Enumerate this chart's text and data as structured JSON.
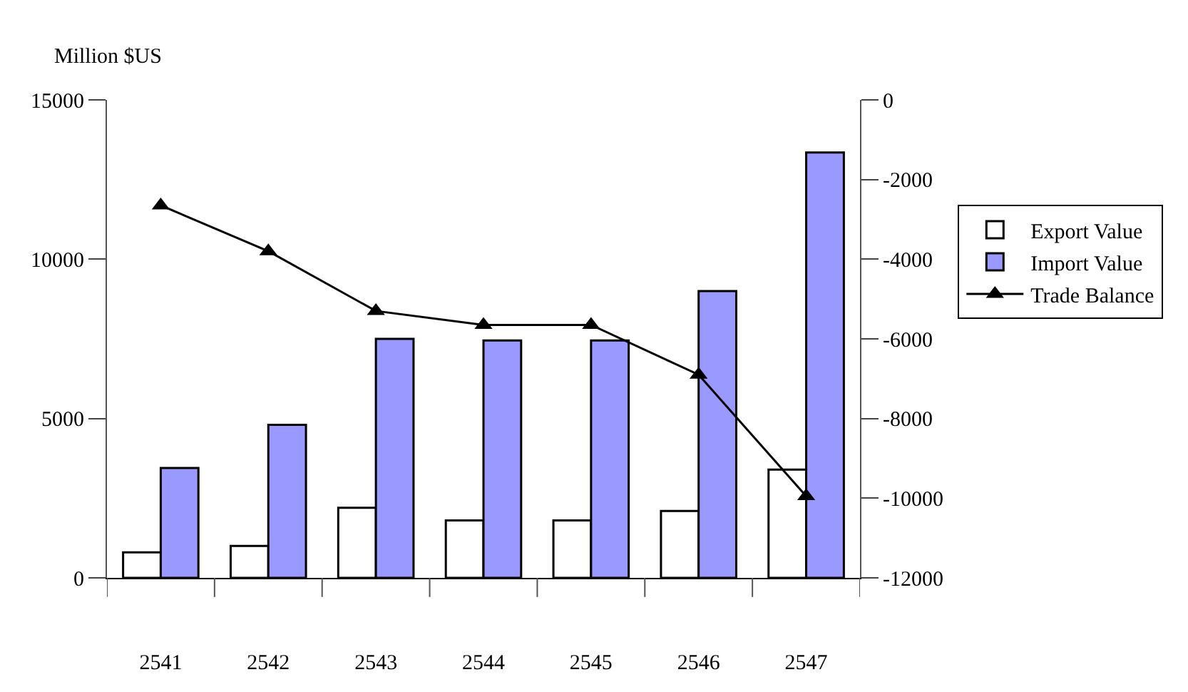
{
  "chart_data": {
    "type": "bar",
    "ylabel": "Million $US",
    "categories": [
      "2541",
      "2542",
      "2543",
      "2544",
      "2545",
      "2546",
      "2547"
    ],
    "series": [
      {
        "name": "Export Value",
        "color": "#ffffff",
        "values": [
          800,
          1000,
          2200,
          1800,
          1800,
          2100,
          3400
        ]
      },
      {
        "name": "Import Value",
        "color": "#9999ff",
        "values": [
          3450,
          4800,
          7500,
          7450,
          7450,
          9000,
          13350
        ]
      },
      {
        "name": "Trade Balance",
        "type": "line",
        "axis": "y2",
        "color": "#000000",
        "marker": "triangle",
        "values": [
          -2650,
          -3800,
          -5300,
          -5650,
          -5650,
          -6900,
          -9950
        ]
      }
    ],
    "ylim": [
      0,
      15000
    ],
    "yticks": [
      0,
      5000,
      10000,
      15000
    ],
    "y2lim": [
      -12000,
      0
    ],
    "y2ticks": [
      -12000,
      -10000,
      -8000,
      -6000,
      -4000,
      -2000,
      0
    ],
    "legend": "right"
  }
}
